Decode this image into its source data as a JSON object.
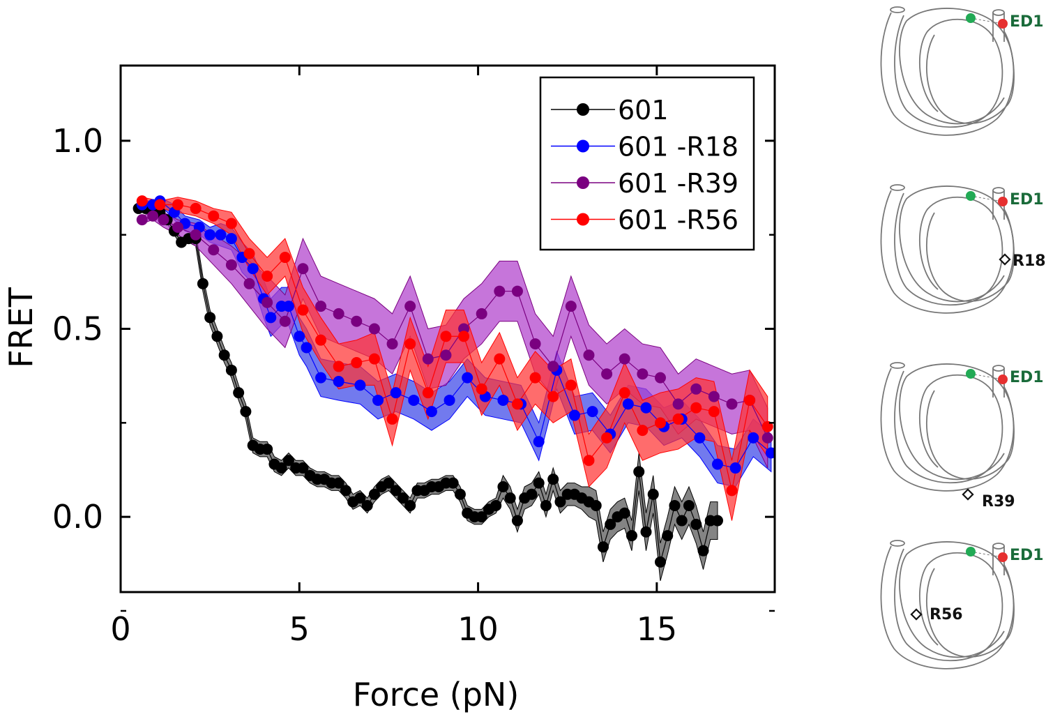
{
  "chart_data": {
    "type": "line",
    "title": "",
    "xlabel": "Force (pN)",
    "ylabel": "FRET",
    "xlim": [
      0,
      18.3
    ],
    "ylim": [
      -0.2,
      1.2
    ],
    "xticks": [
      0,
      5,
      10,
      15
    ],
    "xtick_labels": [
      "0",
      "5",
      "10",
      "15"
    ],
    "yticks": [
      0.0,
      0.5,
      1.0
    ],
    "ytick_labels": [
      "0.0",
      "0.5",
      "1.0"
    ],
    "grid": false,
    "legend_position": "top-right",
    "shaded_band": "error band around each series",
    "series": [
      {
        "name": "601",
        "color": "#000000",
        "band_color": "#555555",
        "x": [
          0.5,
          0.7,
          0.9,
          1.1,
          1.3,
          1.5,
          1.7,
          1.9,
          2.1,
          2.3,
          2.5,
          2.7,
          2.9,
          3.1,
          3.3,
          3.5,
          3.7,
          3.9,
          4.1,
          4.3,
          4.5,
          4.7,
          4.9,
          5.1,
          5.3,
          5.5,
          5.7,
          5.9,
          6.1,
          6.3,
          6.5,
          6.7,
          6.9,
          7.1,
          7.3,
          7.5,
          7.7,
          7.9,
          8.1,
          8.3,
          8.5,
          8.7,
          8.9,
          9.1,
          9.3,
          9.5,
          9.7,
          9.9,
          10.1,
          10.3,
          10.5,
          10.7,
          10.9,
          11.1,
          11.3,
          11.5,
          11.7,
          11.9,
          12.1,
          12.3,
          12.5,
          12.7,
          12.9,
          13.1,
          13.3,
          13.5,
          13.7,
          13.9,
          14.1,
          14.3,
          14.5,
          14.7,
          14.9,
          15.1,
          15.3,
          15.5,
          15.7,
          15.9,
          16.1,
          16.3,
          16.5,
          16.7
        ],
        "y": [
          0.82,
          0.82,
          0.82,
          0.81,
          0.79,
          0.76,
          0.73,
          0.74,
          0.74,
          0.62,
          0.53,
          0.48,
          0.43,
          0.39,
          0.33,
          0.28,
          0.19,
          0.18,
          0.18,
          0.14,
          0.13,
          0.15,
          0.13,
          0.13,
          0.11,
          0.1,
          0.1,
          0.09,
          0.09,
          0.07,
          0.04,
          0.05,
          0.03,
          0.06,
          0.08,
          0.09,
          0.07,
          0.05,
          0.03,
          0.07,
          0.07,
          0.08,
          0.08,
          0.09,
          0.09,
          0.06,
          0.01,
          0.0,
          0.0,
          0.02,
          0.03,
          0.08,
          0.05,
          -0.01,
          0.05,
          0.06,
          0.09,
          0.03,
          0.1,
          0.04,
          0.06,
          0.06,
          0.05,
          0.04,
          0.03,
          -0.08,
          -0.02,
          0.0,
          0.01,
          -0.05,
          0.12,
          -0.04,
          0.06,
          -0.12,
          -0.05,
          0.03,
          -0.01,
          0.03,
          -0.02,
          -0.09,
          -0.01,
          -0.01
        ],
        "err": [
          0.01,
          0.01,
          0.01,
          0.01,
          0.01,
          0.01,
          0.01,
          0.01,
          0.02,
          0.02,
          0.02,
          0.02,
          0.02,
          0.02,
          0.02,
          0.02,
          0.02,
          0.02,
          0.02,
          0.02,
          0.02,
          0.02,
          0.02,
          0.02,
          0.02,
          0.02,
          0.02,
          0.02,
          0.02,
          0.02,
          0.02,
          0.02,
          0.02,
          0.02,
          0.02,
          0.02,
          0.02,
          0.02,
          0.02,
          0.02,
          0.02,
          0.02,
          0.02,
          0.02,
          0.02,
          0.02,
          0.02,
          0.02,
          0.02,
          0.02,
          0.02,
          0.03,
          0.03,
          0.03,
          0.03,
          0.03,
          0.03,
          0.03,
          0.03,
          0.03,
          0.03,
          0.03,
          0.03,
          0.04,
          0.04,
          0.04,
          0.04,
          0.04,
          0.04,
          0.04,
          0.05,
          0.05,
          0.05,
          0.05,
          0.05,
          0.05,
          0.05,
          0.05,
          0.05,
          0.05,
          0.05,
          0.05
        ]
      },
      {
        "name": "601 -R18",
        "color": "#0000ff",
        "band_color": "#3b46e8",
        "x": [
          0.6,
          0.9,
          1.1,
          1.5,
          1.8,
          2.2,
          2.5,
          2.8,
          3.1,
          3.4,
          3.7,
          4.0,
          4.2,
          4.5,
          4.7,
          5.0,
          5.2,
          5.6,
          6.1,
          6.7,
          7.2,
          7.7,
          8.2,
          8.7,
          9.2,
          9.7,
          10.2,
          10.7,
          11.2,
          11.7,
          12.2,
          12.7,
          13.2,
          13.7,
          14.2,
          14.7,
          15.2,
          15.7,
          16.2,
          16.7,
          17.2,
          17.7,
          18.2
        ],
        "y": [
          0.83,
          0.83,
          0.84,
          0.81,
          0.78,
          0.77,
          0.75,
          0.75,
          0.74,
          0.69,
          0.66,
          0.58,
          0.53,
          0.56,
          0.56,
          0.48,
          0.45,
          0.37,
          0.36,
          0.35,
          0.31,
          0.33,
          0.31,
          0.28,
          0.31,
          0.37,
          0.32,
          0.31,
          0.3,
          0.2,
          0.39,
          0.27,
          0.28,
          0.22,
          0.3,
          0.29,
          0.24,
          0.26,
          0.21,
          0.14,
          0.13,
          0.21,
          0.17
        ],
        "err": [
          0.01,
          0.01,
          0.01,
          0.02,
          0.02,
          0.02,
          0.02,
          0.03,
          0.03,
          0.04,
          0.04,
          0.05,
          0.05,
          0.05,
          0.05,
          0.05,
          0.05,
          0.05,
          0.05,
          0.05,
          0.05,
          0.05,
          0.05,
          0.05,
          0.05,
          0.05,
          0.05,
          0.05,
          0.05,
          0.05,
          0.05,
          0.05,
          0.05,
          0.05,
          0.05,
          0.05,
          0.05,
          0.05,
          0.05,
          0.05,
          0.05,
          0.05,
          0.05
        ]
      },
      {
        "name": "601 -R39",
        "color": "#7a0080",
        "band_color": "#b040cc",
        "x": [
          0.6,
          0.9,
          1.2,
          1.6,
          2.1,
          2.6,
          3.1,
          3.6,
          4.1,
          4.6,
          5.1,
          5.6,
          6.1,
          6.6,
          7.1,
          7.6,
          8.1,
          8.6,
          9.1,
          9.6,
          10.1,
          10.6,
          11.1,
          11.6,
          12.1,
          12.6,
          13.1,
          13.6,
          14.1,
          14.6,
          15.1,
          15.6,
          16.1,
          16.6,
          17.1,
          17.6,
          18.1
        ],
        "y": [
          0.79,
          0.8,
          0.79,
          0.77,
          0.75,
          0.71,
          0.67,
          0.62,
          0.57,
          0.52,
          0.66,
          0.56,
          0.54,
          0.52,
          0.5,
          0.46,
          0.56,
          0.42,
          0.43,
          0.5,
          0.54,
          0.6,
          0.6,
          0.46,
          0.4,
          0.56,
          0.43,
          0.38,
          0.42,
          0.38,
          0.37,
          0.3,
          0.34,
          0.32,
          0.3,
          0.31,
          0.21
        ],
        "err": [
          0.01,
          0.01,
          0.02,
          0.02,
          0.03,
          0.04,
          0.05,
          0.06,
          0.07,
          0.07,
          0.08,
          0.08,
          0.08,
          0.08,
          0.08,
          0.08,
          0.08,
          0.08,
          0.08,
          0.08,
          0.08,
          0.08,
          0.08,
          0.08,
          0.08,
          0.08,
          0.08,
          0.08,
          0.08,
          0.08,
          0.08,
          0.08,
          0.08,
          0.08,
          0.08,
          0.08,
          0.08
        ]
      },
      {
        "name": "601 -R56",
        "color": "#ff0000",
        "band_color": "#ff3333",
        "x": [
          0.6,
          1.1,
          1.6,
          2.1,
          2.6,
          3.1,
          3.6,
          4.1,
          4.6,
          5.1,
          5.6,
          6.1,
          6.6,
          7.1,
          7.6,
          8.1,
          8.6,
          9.1,
          9.6,
          10.1,
          10.6,
          11.1,
          11.6,
          12.1,
          12.6,
          13.1,
          13.6,
          14.1,
          14.6,
          15.1,
          15.6,
          16.1,
          16.6,
          17.1,
          17.6,
          18.1
        ],
        "y": [
          0.84,
          0.83,
          0.83,
          0.82,
          0.8,
          0.78,
          0.7,
          0.64,
          0.69,
          0.55,
          0.47,
          0.4,
          0.41,
          0.42,
          0.26,
          0.46,
          0.33,
          0.48,
          0.48,
          0.34,
          0.42,
          0.3,
          0.37,
          0.32,
          0.35,
          0.15,
          0.21,
          0.33,
          0.23,
          0.25,
          0.26,
          0.29,
          0.28,
          0.07,
          0.31,
          0.24
        ],
        "err": [
          0.01,
          0.01,
          0.02,
          0.02,
          0.02,
          0.03,
          0.04,
          0.05,
          0.05,
          0.06,
          0.06,
          0.06,
          0.06,
          0.07,
          0.07,
          0.07,
          0.07,
          0.07,
          0.07,
          0.07,
          0.07,
          0.07,
          0.07,
          0.07,
          0.07,
          0.07,
          0.08,
          0.08,
          0.08,
          0.08,
          0.08,
          0.08,
          0.08,
          0.08,
          0.08,
          0.08
        ]
      }
    ]
  },
  "diagrams": {
    "labels": {
      "donor_acceptor": "ED1",
      "r18": "R18",
      "r39": "R39",
      "r56": "R56"
    },
    "colors": {
      "donor": "#22aa55",
      "acceptor": "#e63030",
      "label_text": "#1a6b3a",
      "outline": "#777777"
    }
  }
}
